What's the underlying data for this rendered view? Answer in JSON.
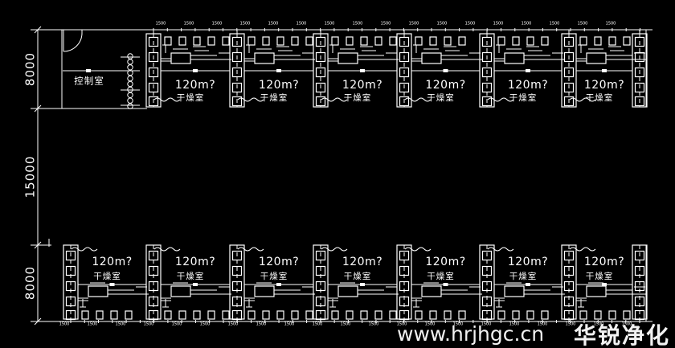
{
  "colors": {
    "background": "#000000",
    "line": "#ffffff"
  },
  "labels": {
    "control_room": "控制室"
  },
  "dimensions": {
    "left": [
      "8000",
      "15000",
      "8000"
    ],
    "module": "1500"
  },
  "top_band": {
    "rooms": [
      {
        "area": "120m?",
        "name": "干燥室"
      },
      {
        "area": "120m?",
        "name": "干燥室"
      },
      {
        "area": "120m?",
        "name": "干燥室"
      },
      {
        "area": "120m?",
        "name": "干燥室"
      },
      {
        "area": "120m?",
        "name": "干燥室"
      },
      {
        "area": "120m?",
        "name": "干燥室"
      }
    ]
  },
  "bottom_band": {
    "rooms": [
      {
        "area": "120m?",
        "name": "干燥室"
      },
      {
        "area": "120m?",
        "name": "干燥室"
      },
      {
        "area": "120m?",
        "name": "干燥室"
      },
      {
        "area": "120m?",
        "name": "干燥室"
      },
      {
        "area": "120m?",
        "name": "干燥室"
      },
      {
        "area": "120m?",
        "name": "干燥室"
      },
      {
        "area": "120m?",
        "name": "干燥室"
      }
    ]
  },
  "watermark": {
    "url": "www.hrjhgc.cn",
    "brand": "华锐净化"
  }
}
